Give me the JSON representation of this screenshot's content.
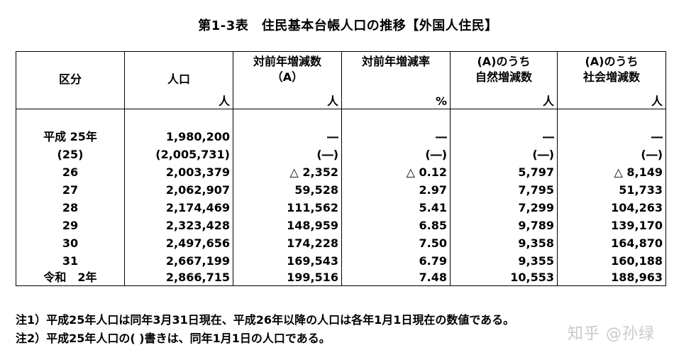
{
  "title": "第1-3表　住民基本台帳人口の推移【外国人住民】",
  "columns": [
    {
      "lines": [
        "区分"
      ],
      "unit": ""
    },
    {
      "lines": [
        "人口"
      ],
      "unit": "人"
    },
    {
      "lines": [
        "対前年増減数",
        "（A）"
      ],
      "unit": "人"
    },
    {
      "lines": [
        "対前年増減率"
      ],
      "unit": "%"
    },
    {
      "lines": [
        "(A)のうち",
        "自然増減数"
      ],
      "unit": "人"
    },
    {
      "lines": [
        "(A)のうち",
        "社会増減数"
      ],
      "unit": "人"
    }
  ],
  "rows": [
    [
      "平成 25年",
      "1,980,200",
      "―",
      "―",
      "―",
      "―"
    ],
    [
      "(25)",
      "(2,005,731)",
      "(―)",
      "(―)",
      "(―)",
      "(―)"
    ],
    [
      "26",
      "2,003,379",
      "△ 2,352",
      "△ 0.12",
      "5,797",
      "△ 8,149"
    ],
    [
      "27",
      "2,062,907",
      "59,528",
      "2.97",
      "7,795",
      "51,733"
    ],
    [
      "28",
      "2,174,469",
      "111,562",
      "5.41",
      "7,299",
      "104,263"
    ],
    [
      "29",
      "2,323,428",
      "148,959",
      "6.85",
      "9,789",
      "139,170"
    ],
    [
      "30",
      "2,497,656",
      "174,228",
      "7.50",
      "9,358",
      "164,870"
    ],
    [
      "31",
      "2,667,199",
      "169,543",
      "6.79",
      "9,355",
      "160,188"
    ],
    [
      "令和　2年",
      "2,866,715",
      "199,516",
      "7.48",
      "10,553",
      "188,963"
    ]
  ],
  "notes": [
    "注1）平成25年人口は同年3月31日現在、平成26年以降の人口は各年1月1日現在の数値である。",
    "注2）平成25年人口の( )書きは、同年1月1日の人口である。"
  ],
  "watermark": "知乎 @孙绿"
}
